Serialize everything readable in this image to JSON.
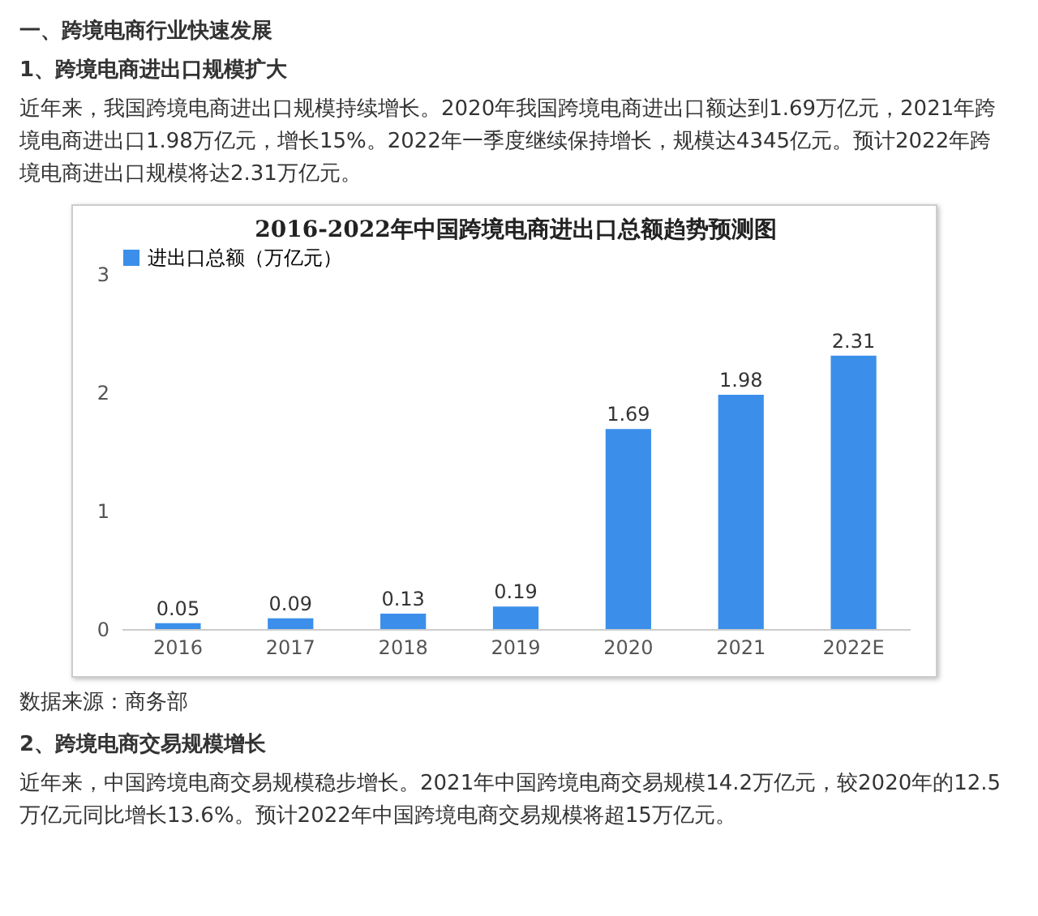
{
  "chart_data": {
    "type": "bar",
    "title": "2016-2022年中国跨境电商进出口总额趋势预测图",
    "categories": [
      "2016",
      "2017",
      "2018",
      "2019",
      "2020",
      "2021",
      "2022E"
    ],
    "series": [
      {
        "name": "进出口总额（万亿元）",
        "color": "#3b8fea",
        "values": [
          0.05,
          0.09,
          0.13,
          0.19,
          1.69,
          1.98,
          2.31
        ]
      }
    ],
    "ylim": [
      0,
      3
    ],
    "yticks": [
      0,
      1,
      2,
      3
    ],
    "legend": "top",
    "data_labels": true,
    "annotations": [
      "一、跨境电商行业快速发展",
      "1、跨境电商进出口规模扩大",
      "近年来，我国跨境电商进出口规模持续增长。2020年我国跨境电商进出口额达到1.69万亿元，2021年跨境电商进出口1.98万亿元，增长15%。2022年一季度继续保持增长，规模达4345亿元。预计2022年跨境电商进出口规模将达2.31万亿元。",
      "数据来源：商务部",
      "2、跨境电商交易规模增长",
      "近年来，中国跨境电商交易规模稳步增长。2021年中国跨境电商交易规模14.2万亿元，较2020年的12.5万亿元同比增长13.6%。预计2022年中国跨境电商交易规模将超15万亿元。"
    ]
  }
}
